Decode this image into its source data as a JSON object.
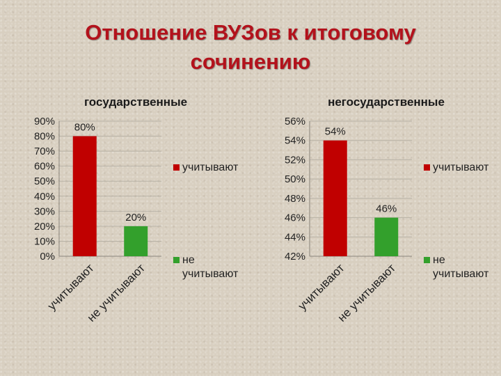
{
  "page": {
    "title_line1": "Отношение ВУЗов к итоговому",
    "title_line2": "сочинению"
  },
  "colors": {
    "series_yes": "#c00000",
    "series_no": "#33a02c",
    "title": "#b3121c"
  },
  "chart_data": [
    {
      "type": "bar",
      "title": "государственные",
      "categories": [
        "учитывают",
        "не учитывают"
      ],
      "values": [
        80,
        20
      ],
      "value_labels": [
        "80%",
        "20%"
      ],
      "ylim": [
        0,
        90
      ],
      "yticks": [
        0,
        10,
        20,
        30,
        40,
        50,
        60,
        70,
        80,
        90
      ],
      "ytick_labels": [
        "0%",
        "10%",
        "20%",
        "30%",
        "40%",
        "50%",
        "60%",
        "70%",
        "80%",
        "90%"
      ],
      "grid": true,
      "legend": [
        "учитывают",
        "не учитывают"
      ],
      "legend_lines": [
        [
          "учитывают"
        ],
        [
          "не",
          "учитывают"
        ]
      ],
      "legend_position": "right"
    },
    {
      "type": "bar",
      "title": "негосударственные",
      "categories": [
        "учитывают",
        "не учитывают"
      ],
      "values": [
        54,
        46
      ],
      "value_labels": [
        "54%",
        "46%"
      ],
      "ylim": [
        42,
        56
      ],
      "yticks": [
        42,
        44,
        46,
        48,
        50,
        52,
        54,
        56
      ],
      "ytick_labels": [
        "42%",
        "44%",
        "46%",
        "48%",
        "50%",
        "52%",
        "54%",
        "56%"
      ],
      "grid": true,
      "legend": [
        "учитывают",
        "не учитывают"
      ],
      "legend_lines": [
        [
          "учитывают"
        ],
        [
          "не",
          "учитывают"
        ]
      ],
      "legend_position": "right"
    }
  ]
}
